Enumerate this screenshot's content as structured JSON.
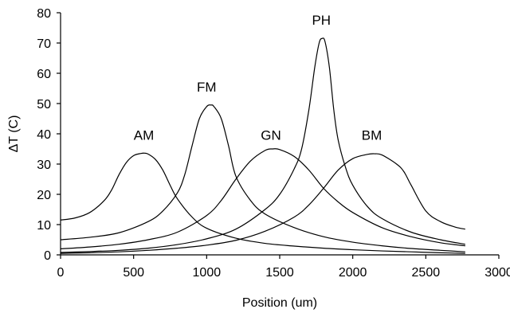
{
  "chart_data": {
    "type": "line",
    "title": "",
    "xlabel": "Position (um)",
    "ylabel": "ΔT (C)",
    "xlim": [
      0,
      3000
    ],
    "ylim": [
      0,
      80
    ],
    "xticks": [
      0,
      500,
      1000,
      1500,
      2000,
      2500,
      3000
    ],
    "yticks": [
      0,
      10,
      20,
      30,
      40,
      50,
      60,
      70,
      80
    ],
    "grid": false,
    "legend": "none",
    "series": [
      {
        "label": "AM",
        "label_at": [
          570,
          38
        ],
        "x": [
          0,
          100,
          200,
          300,
          350,
          400,
          450,
          500,
          550,
          575,
          600,
          650,
          700,
          750,
          800,
          900,
          1000,
          1200,
          1400,
          1600,
          1800,
          2000,
          2200,
          2400,
          2600,
          2770
        ],
        "y": [
          11.5,
          12.2,
          14.0,
          18.0,
          21.5,
          26.5,
          30.5,
          32.8,
          33.5,
          33.6,
          33.3,
          31.5,
          28.0,
          23.0,
          18.5,
          12.5,
          8.8,
          5.5,
          3.8,
          2.9,
          2.2,
          1.7,
          1.3,
          1.0,
          0.7,
          0.5
        ]
      },
      {
        "label": "FM",
        "label_at": [
          1000,
          54
        ],
        "x": [
          0,
          200,
          400,
          600,
          700,
          800,
          850,
          900,
          950,
          1000,
          1030,
          1050,
          1100,
          1150,
          1200,
          1300,
          1400,
          1600,
          1800,
          2000,
          2200,
          2400,
          2600,
          2770
        ],
        "y": [
          5.0,
          5.8,
          7.3,
          11.0,
          14.5,
          20.5,
          26.5,
          36.0,
          45.0,
          49.0,
          49.5,
          49.0,
          45.0,
          36.0,
          26.0,
          18.0,
          13.5,
          9.0,
          6.0,
          4.2,
          3.0,
          2.1,
          1.5,
          1.0
        ]
      },
      {
        "label": "GN",
        "label_at": [
          1440,
          38
        ],
        "x": [
          0,
          200,
          400,
          600,
          800,
          1000,
          1100,
          1200,
          1300,
          1400,
          1450,
          1500,
          1600,
          1700,
          1800,
          1900,
          2000,
          2200,
          2400,
          2600,
          2770
        ],
        "y": [
          2.0,
          2.6,
          3.5,
          5.0,
          7.5,
          13.0,
          18.0,
          25.0,
          31.0,
          34.5,
          35.0,
          34.8,
          32.5,
          28.0,
          22.0,
          17.5,
          14.0,
          9.0,
          6.0,
          4.0,
          3.0
        ]
      },
      {
        "label": "PH",
        "label_at": [
          1785,
          76
        ],
        "x": [
          0,
          200,
          400,
          600,
          800,
          1000,
          1200,
          1400,
          1500,
          1600,
          1650,
          1700,
          1740,
          1770,
          1790,
          1810,
          1840,
          1870,
          1900,
          1950,
          2000,
          2100,
          2200,
          2400,
          2600,
          2770
        ],
        "y": [
          0.8,
          1.1,
          1.5,
          2.2,
          3.4,
          5.3,
          8.5,
          15.0,
          20.0,
          28.5,
          35.0,
          48.0,
          62.0,
          70.0,
          71.5,
          70.5,
          62.0,
          48.0,
          38.0,
          29.0,
          23.0,
          16.0,
          12.0,
          7.5,
          5.0,
          3.5
        ]
      },
      {
        "label": "BM",
        "label_at": [
          2130,
          38
        ],
        "x": [
          0,
          200,
          400,
          600,
          800,
          1000,
          1200,
          1400,
          1600,
          1700,
          1800,
          1900,
          2000,
          2100,
          2150,
          2200,
          2300,
          2350,
          2400,
          2500,
          2600,
          2700,
          2770
        ],
        "y": [
          0.5,
          0.7,
          1.0,
          1.5,
          2.2,
          3.2,
          4.8,
          7.8,
          12.5,
          16.5,
          22.0,
          28.0,
          31.8,
          33.2,
          33.4,
          33.0,
          30.0,
          27.5,
          23.0,
          14.5,
          11.0,
          9.2,
          8.5
        ]
      }
    ]
  }
}
